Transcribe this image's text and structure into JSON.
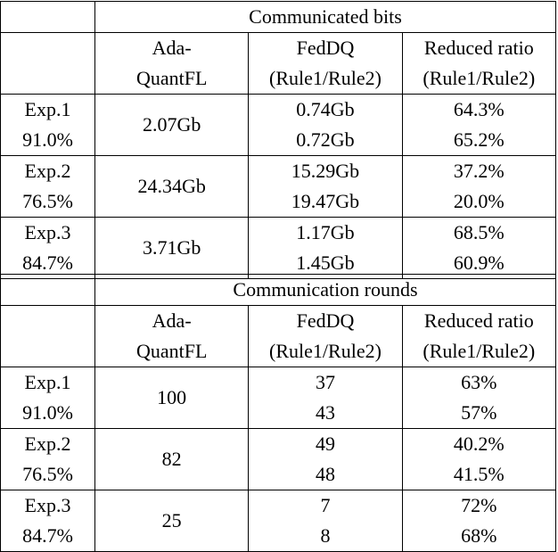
{
  "tables": [
    {
      "title": "Communicated bits",
      "headers": [
        {
          "line1": "Ada-",
          "line2": "QuantFL"
        },
        {
          "line1": "FedDQ",
          "line2": "(Rule1/Rule2)"
        },
        {
          "line1": "Reduced ratio",
          "line2": "(Rule1/Rule2)"
        }
      ],
      "rows": [
        {
          "exp": "Exp.1",
          "acc": "91.0%",
          "ada": "2.07Gb",
          "fed1": "0.74Gb",
          "fed2": "0.72Gb",
          "red1": "64.3%",
          "red2": "65.2%"
        },
        {
          "exp": "Exp.2",
          "acc": "76.5%",
          "ada": "24.34Gb",
          "fed1": "15.29Gb",
          "fed2": "19.47Gb",
          "red1": "37.2%",
          "red2": "20.0%"
        },
        {
          "exp": "Exp.3",
          "acc": "84.7%",
          "ada": "3.71Gb",
          "fed1": "1.17Gb",
          "fed2": "1.45Gb",
          "red1": "68.5%",
          "red2": "60.9%"
        }
      ]
    },
    {
      "title": "Communication rounds",
      "headers": [
        {
          "line1": "Ada-",
          "line2": "QuantFL"
        },
        {
          "line1": "FedDQ",
          "line2": "(Rule1/Rule2)"
        },
        {
          "line1": "Reduced ratio",
          "line2": "(Rule1/Rule2)"
        }
      ],
      "rows": [
        {
          "exp": "Exp.1",
          "acc": "91.0%",
          "ada": "100",
          "fed1": "37",
          "fed2": "43",
          "red1": "63%",
          "red2": "57%"
        },
        {
          "exp": "Exp.2",
          "acc": "76.5%",
          "ada": "82",
          "fed1": "49",
          "fed2": "48",
          "red1": "40.2%",
          "red2": "41.5%"
        },
        {
          "exp": "Exp.3",
          "acc": "84.7%",
          "ada": "25",
          "fed1": "7",
          "fed2": "8",
          "red1": "72%",
          "red2": "68%"
        }
      ]
    }
  ]
}
